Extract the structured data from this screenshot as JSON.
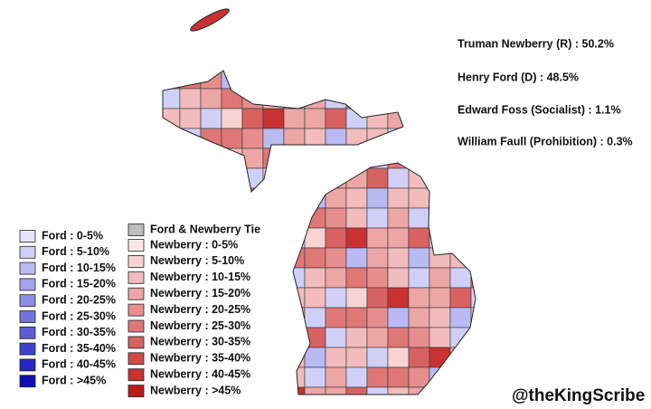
{
  "results": [
    "Truman Newberry (R) : 50.2%",
    "Henry Ford (D) : 48.5%",
    "Edward Foss (Socialist) : 1.1%",
    "William Faull (Prohibition) : 0.3%"
  ],
  "legend": {
    "ford": [
      {
        "label": "Ford : 0-5%",
        "color": "#e4e4fb"
      },
      {
        "label": "Ford : 5-10%",
        "color": "#d0d0f7"
      },
      {
        "label": "Ford : 10-15%",
        "color": "#babaf2"
      },
      {
        "label": "Ford : 15-20%",
        "color": "#a3a3ec"
      },
      {
        "label": "Ford : 20-25%",
        "color": "#8c8ce5"
      },
      {
        "label": "Ford : 25-30%",
        "color": "#7373dd"
      },
      {
        "label": "Ford : 30-35%",
        "color": "#5b5bd6"
      },
      {
        "label": "Ford : 35-40%",
        "color": "#4040cf"
      },
      {
        "label": "Ford : 40-45%",
        "color": "#2626c4"
      },
      {
        "label": "Ford : >45%",
        "color": "#0e0eb3"
      }
    ],
    "tie": {
      "label": "Ford & Newberry Tie",
      "color": "#bdbdbd"
    },
    "newberry": [
      {
        "label": "Newberry : 0-5%",
        "color": "#fbe6e6"
      },
      {
        "label": "Newberry : 5-10%",
        "color": "#f7d3d3"
      },
      {
        "label": "Newberry : 10-15%",
        "color": "#f2bcbc"
      },
      {
        "label": "Newberry : 15-20%",
        "color": "#eda6a6"
      },
      {
        "label": "Newberry : 20-25%",
        "color": "#e68e8e"
      },
      {
        "label": "Newberry : 25-30%",
        "color": "#df7777"
      },
      {
        "label": "Newberry : 30-35%",
        "color": "#d86262"
      },
      {
        "label": "Newberry : 35-40%",
        "color": "#d14a4a"
      },
      {
        "label": "Newberry : 40-45%",
        "color": "#c83232"
      },
      {
        "label": "Newberry : >45%",
        "color": "#bb1a1a"
      }
    ]
  },
  "watermark": "@theKingScribe"
}
